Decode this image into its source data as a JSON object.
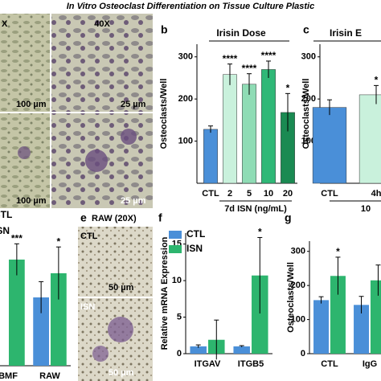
{
  "title": "In Vitro Osteoclast Differentiation on Tissue Culture Plastic",
  "panel_a": {
    "labels": [
      "X",
      "40X"
    ],
    "scale_bars": [
      "100 µm",
      "25 µm",
      "100 µm",
      "25 µm"
    ]
  },
  "panel_e": {
    "letter": "e",
    "title": "RAW (20X)",
    "labels": [
      "CTL",
      "ISN"
    ],
    "scale_bars": [
      "50 µm",
      "50 µm"
    ]
  },
  "chart_data": [
    {
      "type": "bar",
      "panel": "b",
      "title": "Irisin Dose",
      "ylabel": "Osteoclasts/Well",
      "xlabel": "7d ISN (ng/mL)",
      "categories": [
        "CTL",
        "2",
        "5",
        "10",
        "20"
      ],
      "values": [
        128,
        258,
        235,
        270,
        168
      ],
      "errors": [
        8,
        25,
        25,
        20,
        45
      ],
      "colors": [
        "#4a8fd8",
        "#c9f1dc",
        "#8fdcb5",
        "#2fb877",
        "#1a8a52"
      ],
      "ylim": [
        0,
        330
      ],
      "yticks": [
        100,
        200,
        300
      ],
      "annotations": [
        {
          "x": "2",
          "text": "****"
        },
        {
          "x": "5",
          "text": "****"
        },
        {
          "x": "10",
          "text": "****"
        },
        {
          "x": "20",
          "text": "*"
        }
      ]
    },
    {
      "type": "bar",
      "panel": "c",
      "title": "Irisin E",
      "ylabel": "Osteoclasts/Well",
      "xlabel": "10",
      "categories": [
        "CTL",
        "4h"
      ],
      "values": [
        180,
        210
      ],
      "errors": [
        18,
        22
      ],
      "colors": [
        "#4a8fd8",
        "#c9f1dc"
      ],
      "ylim": [
        0,
        330
      ],
      "yticks": [
        100,
        200,
        300
      ],
      "annotations": [
        {
          "x": "4h",
          "text": "*"
        }
      ]
    },
    {
      "type": "grouped",
      "categories": [
        "BMF",
        "RAW"
      ],
      "series": [
        {
          "name": "CTL",
          "color": "#4a8fd8",
          "values": [
            null,
            65
          ],
          "errors": [
            null,
            15
          ]
        },
        {
          "name": "ISN",
          "color": "#2db56e",
          "values": [
            101,
            88
          ],
          "errors": [
            15,
            25
          ]
        }
      ],
      "ylim": [
        0,
        130
      ],
      "annotations": [
        {
          "x": "BMF",
          "series": "ISN",
          "text": "***"
        },
        {
          "x": "RAW",
          "series": "ISN",
          "text": "*"
        }
      ]
    },
    {
      "type": "grouped",
      "panel": "f",
      "ylabel": "Relative mRNA Expression",
      "categories": [
        "ITGAV",
        "ITGB5"
      ],
      "series": [
        {
          "name": "CTL",
          "color": "#4a8fd8",
          "values": [
            1.0,
            1.0
          ],
          "errors": [
            0.2,
            0.1
          ]
        },
        {
          "name": "ISN",
          "color": "#2db56e",
          "values": [
            1.9,
            10.7
          ],
          "errors": [
            2.7,
            5.2
          ]
        }
      ],
      "ylim": [
        0,
        16.5
      ],
      "yticks": [
        0,
        5,
        10,
        15
      ],
      "annotations": [
        {
          "x": "ITGB5",
          "series": "ISN",
          "text": "*"
        }
      ],
      "legend": "top-left"
    },
    {
      "type": "grouped",
      "panel": "g",
      "ylabel": "Osteoclasts/Well",
      "categories": [
        "CTL",
        "IgG"
      ],
      "series": [
        {
          "name": "CTL",
          "color": "#4a8fd8",
          "values": [
            157,
            143
          ],
          "errors": [
            10,
            25
          ]
        },
        {
          "name": "ISN",
          "color": "#2db56e",
          "values": [
            228,
            215
          ],
          "errors": [
            55,
            45
          ]
        }
      ],
      "ylim": [
        0,
        330
      ],
      "yticks": [
        0,
        100,
        200,
        300
      ],
      "annotations": [
        {
          "x": "CTL",
          "series": "ISN",
          "text": "*"
        }
      ]
    }
  ]
}
